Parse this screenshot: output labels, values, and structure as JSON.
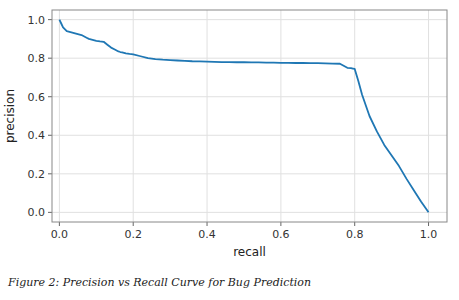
{
  "chart_data": {
    "type": "line",
    "xlabel": "recall",
    "ylabel": "precision",
    "caption": "Figure 2: Precision vs Recall Curve for Bug Prediction",
    "color": "#1f77b4",
    "grid": true,
    "xlim": [
      -0.02,
      1.05
    ],
    "ylim": [
      -0.05,
      1.05
    ],
    "xticks": [
      {
        "value": 0.0,
        "label": "0.0"
      },
      0.2,
      0.4,
      0.6,
      0.8,
      {
        "value": 1.0,
        "label": "1.0"
      }
    ],
    "yticks": [
      {
        "value": 0.0,
        "label": "0.0"
      },
      0.2,
      0.4,
      0.6,
      0.8,
      {
        "value": 1.0,
        "label": "1.0"
      }
    ],
    "x": [
      0.0,
      0.005,
      0.01,
      0.02,
      0.03,
      0.04,
      0.05,
      0.06,
      0.065,
      0.07,
      0.075,
      0.08,
      0.09,
      0.1,
      0.11,
      0.12,
      0.13,
      0.14,
      0.15,
      0.155,
      0.16,
      0.165,
      0.17,
      0.18,
      0.19,
      0.2,
      0.22,
      0.24,
      0.26,
      0.28,
      0.3,
      0.32,
      0.34,
      0.36,
      0.38,
      0.4,
      0.42,
      0.44,
      0.46,
      0.48,
      0.5,
      0.52,
      0.54,
      0.56,
      0.58,
      0.6,
      0.62,
      0.64,
      0.66,
      0.68,
      0.7,
      0.72,
      0.74,
      0.76,
      0.78,
      0.79,
      0.795,
      0.8,
      0.81,
      0.82,
      0.84,
      0.86,
      0.88,
      0.9,
      0.92,
      0.94,
      0.96,
      0.98,
      1.0
    ],
    "values": [
      1.0,
      0.98,
      0.96,
      0.94,
      0.935,
      0.93,
      0.925,
      0.92,
      0.915,
      0.91,
      0.905,
      0.9,
      0.895,
      0.89,
      0.887,
      0.885,
      0.87,
      0.855,
      0.845,
      0.84,
      0.835,
      0.832,
      0.83,
      0.825,
      0.822,
      0.82,
      0.81,
      0.8,
      0.795,
      0.792,
      0.79,
      0.788,
      0.786,
      0.784,
      0.783,
      0.782,
      0.781,
      0.78,
      0.78,
      0.779,
      0.779,
      0.778,
      0.778,
      0.777,
      0.777,
      0.776,
      0.776,
      0.775,
      0.775,
      0.774,
      0.774,
      0.773,
      0.772,
      0.771,
      0.75,
      0.748,
      0.746,
      0.744,
      0.68,
      0.61,
      0.5,
      0.42,
      0.35,
      0.295,
      0.24,
      0.175,
      0.115,
      0.055,
      0.0
    ]
  }
}
